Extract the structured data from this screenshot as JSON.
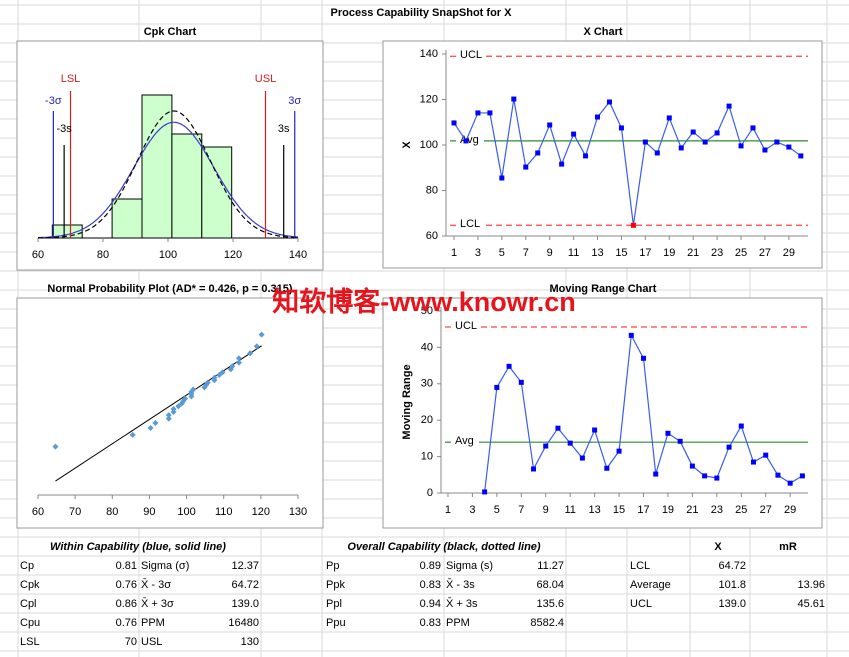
{
  "page_title": "Process Capability SnapShot for X",
  "watermark": "知软博客-www.knowr.cn",
  "chart_data": [
    {
      "type": "histogram",
      "title": "Cpk Chart",
      "bins": [
        64.4,
        73.6,
        82.8,
        92.0,
        101.2,
        110.4,
        119.6
      ],
      "counts": [
        1,
        0,
        3,
        11,
        8,
        7
      ],
      "color": "#ccffcc",
      "xlim": [
        60,
        140
      ],
      "xticks": [
        60,
        80,
        100,
        120,
        140
      ],
      "ylim": [
        0,
        15
      ],
      "curves": [
        {
          "mean": 101.8,
          "sigma": 12.37,
          "color": "#3b3bd1",
          "dash": false
        },
        {
          "mean": 101.8,
          "sigma": 11.27,
          "color": "#000000",
          "dash": true
        }
      ],
      "reference_lines": [
        {
          "label": "LSL",
          "value": 70,
          "color": "#d62020"
        },
        {
          "label": "USL",
          "value": 130,
          "color": "#d62020"
        },
        {
          "label": "-3σ",
          "value": 64.72,
          "color": "#2424b8"
        },
        {
          "label": "3σ",
          "value": 139.0,
          "color": "#2424b8"
        },
        {
          "label": "-3s",
          "value": 68.04,
          "color": "#000000"
        },
        {
          "label": "3s",
          "value": 135.6,
          "color": "#000000"
        }
      ]
    },
    {
      "type": "control",
      "title": "X Chart",
      "ylabel": "X",
      "x": [
        1,
        2,
        3,
        4,
        5,
        6,
        7,
        8,
        9,
        10,
        11,
        12,
        13,
        14,
        15,
        16,
        17,
        18,
        19,
        20,
        21,
        22,
        23,
        24,
        25,
        26,
        27,
        28,
        29,
        30
      ],
      "values": [
        109.7,
        101.8,
        114.1,
        114.1,
        85.5,
        120.2,
        90.3,
        96.5,
        108.8,
        91.6,
        104.8,
        95.2,
        112.3,
        118.9,
        107.5,
        64.7,
        101.3,
        96.5,
        111.9,
        98.7,
        105.7,
        101.3,
        105.3,
        117.1,
        99.6,
        107.5,
        97.8,
        101.3,
        99.1,
        95.2
      ],
      "color": "#3a5cf0",
      "marker_color": "#0000ff",
      "out_color": "#ff0000",
      "xlim": [
        0.33,
        30.6
      ],
      "xticks": [
        1,
        3,
        5,
        7,
        9,
        11,
        13,
        15,
        17,
        19,
        21,
        23,
        25,
        27,
        29
      ],
      "ylim": [
        60,
        140
      ],
      "yticks": [
        60,
        80,
        100,
        120,
        140
      ],
      "control_lines": [
        {
          "label": "UCL",
          "value": 139.0,
          "color": "#ff4040",
          "dash": true
        },
        {
          "label": "Avg",
          "value": 101.8,
          "color": "#2e8b2e",
          "dash": false
        },
        {
          "label": "LCL",
          "value": 64.72,
          "color": "#ff4040",
          "dash": true
        }
      ]
    },
    {
      "type": "probability",
      "title": "Normal Probability Plot (AD* = 0.426, p = 0.315)",
      "x": [
        64.7,
        85.5,
        90.3,
        91.6,
        95.2,
        95.2,
        96.5,
        96.5,
        97.8,
        98.7,
        99.1,
        99.6,
        101.3,
        101.3,
        101.3,
        101.8,
        104.8,
        105.3,
        105.7,
        107.5,
        107.5,
        108.8,
        109.7,
        111.9,
        112.3,
        114.1,
        114.1,
        117.1,
        118.9,
        120.2
      ],
      "values": [
        -2.04,
        -1.61,
        -1.36,
        -1.18,
        -1.02,
        -0.89,
        -0.78,
        -0.67,
        -0.57,
        -0.47,
        -0.38,
        -0.29,
        -0.21,
        -0.12,
        -0.04,
        0.04,
        0.12,
        0.21,
        0.29,
        0.38,
        0.47,
        0.57,
        0.67,
        0.78,
        0.89,
        1.02,
        1.18,
        1.36,
        1.61,
        2.04
      ],
      "color": "#5b9bd5",
      "xlim": [
        60,
        130
      ],
      "xticks": [
        60,
        70,
        80,
        90,
        100,
        110,
        120,
        130
      ],
      "ylim": [
        -3.8,
        3.3
      ],
      "fit": {
        "mean": 101.8,
        "sigma": 11.27,
        "color": "#000000"
      }
    },
    {
      "type": "control",
      "title": "Moving Range Chart",
      "ylabel": "Moving Range",
      "x": [
        2,
        3,
        4,
        5,
        6,
        7,
        8,
        9,
        10,
        11,
        12,
        13,
        14,
        15,
        16,
        17,
        18,
        19,
        20,
        21,
        22,
        23,
        24,
        25,
        26,
        27,
        28,
        29,
        30
      ],
      "values": [
        null,
        null,
        0.3,
        29,
        34.8,
        30.4,
        6.6,
        12.9,
        17.8,
        13.7,
        9.6,
        17.3,
        6.8,
        11.5,
        43.3,
        37,
        5.2,
        16.4,
        14.2,
        7.4,
        4.7,
        4.1,
        12.6,
        18.4,
        8.5,
        10.4,
        4.9,
        2.7,
        4.7
      ],
      "color": "#3a5cf0",
      "marker_color": "#0000ff",
      "out_color": "#ff0000",
      "xlim": [
        0.43,
        30.46
      ],
      "xticks": [
        1,
        3,
        5,
        7,
        9,
        11,
        13,
        15,
        17,
        19,
        21,
        23,
        25,
        27,
        29
      ],
      "ylim": [
        0,
        50
      ],
      "yticks": [
        0,
        10,
        20,
        30,
        40,
        50
      ],
      "control_lines": [
        {
          "label": "UCL",
          "value": 45.61,
          "color": "#ff4040",
          "dash": true
        },
        {
          "label": "Avg",
          "value": 13.96,
          "color": "#2e8b2e",
          "dash": false
        }
      ]
    }
  ],
  "tables": [
    {
      "title": "Within Capability (blue, solid line)",
      "rows": [
        [
          "Cp",
          "0.81",
          "Sigma (σ)",
          "12.37"
        ],
        [
          "Cpk",
          "0.76",
          "X̄ - 3σ",
          "64.72"
        ],
        [
          "Cpl",
          "0.86",
          "X̄ + 3σ",
          "139.0"
        ],
        [
          "Cpu",
          "0.76",
          "PPM",
          "16480"
        ],
        [
          "LSL",
          "70",
          "USL",
          "130"
        ]
      ]
    },
    {
      "title": "Overall Capability (black, dotted line)",
      "rows": [
        [
          "Pp",
          "0.89",
          "Sigma (s)",
          "11.27"
        ],
        [
          "Ppk",
          "0.83",
          "X̄ - 3s",
          "68.04"
        ],
        [
          "Ppl",
          "0.94",
          "X̄ + 3s",
          "135.6"
        ],
        [
          "Ppu",
          "0.83",
          "PPM",
          "8582.4"
        ]
      ]
    },
    {
      "columns": [
        "X",
        "mR"
      ],
      "rows": [
        [
          "LCL",
          "64.72"
        ],
        [
          "Average",
          "101.8",
          "13.96"
        ],
        [
          "UCL",
          "139.0",
          "45.61"
        ]
      ]
    }
  ]
}
